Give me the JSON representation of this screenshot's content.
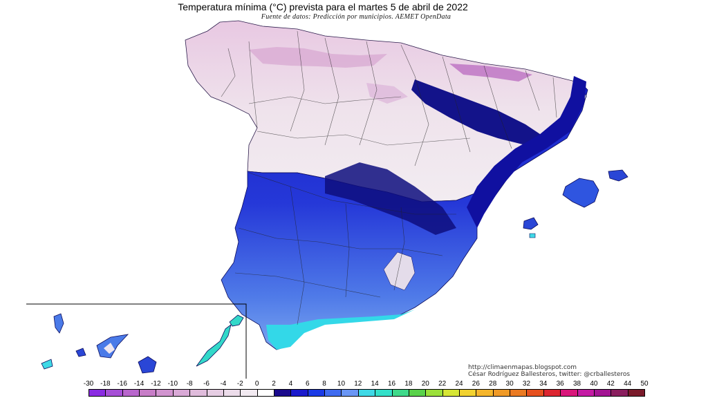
{
  "title": "Temperatura mínima (°C) prevista para el martes 5 de abril de 2022",
  "subtitle": "Fuente de datos: Predicción por municipios. AEMET OpenData",
  "credits": {
    "url": "http://climaenmapas.blogspot.com",
    "author": "César Rodríguez Ballesteros, twitter: @crballesteros"
  },
  "legend": {
    "ticks": [
      "-30",
      "-18",
      "-16",
      "-14",
      "-12",
      "-10",
      "-8",
      "-6",
      "-4",
      "-2",
      "0",
      "2",
      "4",
      "6",
      "8",
      "10",
      "12",
      "14",
      "16",
      "18",
      "20",
      "22",
      "24",
      "26",
      "28",
      "30",
      "32",
      "34",
      "36",
      "38",
      "40",
      "42",
      "44",
      "50"
    ],
    "colors": [
      "#8a2be2",
      "#a64fd6",
      "#b866cc",
      "#c77dc7",
      "#d194cf",
      "#d9a9d6",
      "#e0bcdc",
      "#e6cde3",
      "#ecdcea",
      "#f2eaf1",
      "#ffffff",
      "#1a0a8c",
      "#1a1acc",
      "#1a3ae6",
      "#3f6bf0",
      "#6a96f5",
      "#3fd9e6",
      "#33e0c9",
      "#3ed98a",
      "#59d24a",
      "#9be03a",
      "#d6e635",
      "#f2d230",
      "#f5b52b",
      "#f09a26",
      "#ea7a22",
      "#e6501f",
      "#dc2530",
      "#d9157a",
      "#c41aa4",
      "#a31493",
      "#8a1e5e",
      "#7a1a2a"
    ]
  },
  "regions": {
    "mainland": "Península Ibérica",
    "balearic": "Islas Baleares",
    "canary": "Islas Canarias"
  }
}
